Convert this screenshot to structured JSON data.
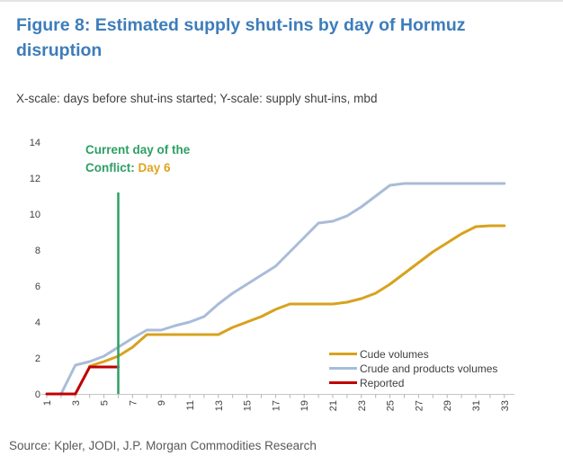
{
  "header": {
    "title": "Figure 8: Estimated supply shut-ins by day of Hormuz disruption",
    "subtitle": "X-scale: days before shut-ins started; Y-scale: supply shut-ins, mbd"
  },
  "annotation": {
    "line1": "Current day of the",
    "line2_prefix": "Conflict: ",
    "line2_highlight": "Day 6"
  },
  "source": "Source: Kpler, JODI, J.P. Morgan Commodities Research",
  "colors": {
    "title_blue": "#3d7dbb",
    "annotation_green": "#2d9f63",
    "annotation_gold": "#dfa41f",
    "axis_line": "#c6c6c6",
    "tick_mark": "#b3b3b3",
    "tick_text": "#404040",
    "source_gray": "#595959"
  },
  "chart_data": {
    "type": "line",
    "title": "Estimated supply shut-ins by day of Hormuz disruption",
    "xlabel": "days before shut-ins started",
    "ylabel": "supply shut-ins, mbd",
    "xlim": [
      1,
      33
    ],
    "ylim": [
      0,
      14
    ],
    "grid": false,
    "legend_position": "inside lower right",
    "x_tick_labels": [
      1,
      3,
      5,
      7,
      9,
      11,
      13,
      15,
      17,
      19,
      21,
      23,
      25,
      27,
      29,
      31,
      33
    ],
    "y_tick_labels": [
      0,
      2,
      4,
      6,
      8,
      10,
      12,
      14
    ],
    "vline": {
      "day": 6,
      "top": 11.2,
      "color": "#2d9f63",
      "label": "Current day of the Conflict: Day 6"
    },
    "series": [
      {
        "name": "Cude volumes",
        "color": "#d7a21e",
        "start_day": 4,
        "values": [
          1.55,
          1.8,
          2.1,
          2.6,
          3.3,
          3.3,
          3.3,
          3.3,
          3.3,
          3.3,
          3.7,
          4.0,
          4.3,
          4.7,
          5.0,
          5.0,
          5.0,
          5.0,
          5.1,
          5.3,
          5.6,
          6.1,
          6.7,
          7.3,
          7.9,
          8.4,
          8.9,
          9.3,
          9.35,
          9.35
        ]
      },
      {
        "name": "Crude and products volumes",
        "color": "#a9bcd8",
        "start_day": 1,
        "values": [
          0,
          0,
          1.6,
          1.8,
          2.1,
          2.6,
          3.1,
          3.55,
          3.55,
          3.8,
          4.0,
          4.3,
          5.0,
          5.6,
          6.1,
          6.6,
          7.1,
          7.9,
          8.7,
          9.5,
          9.6,
          9.9,
          10.4,
          11.0,
          11.6,
          11.7,
          11.7,
          11.7,
          11.7,
          11.7,
          11.7,
          11.7,
          11.7
        ]
      },
      {
        "name": "Reported",
        "color": "#c00000",
        "start_day": 1,
        "values": [
          0,
          0,
          0,
          1.5,
          1.5,
          1.5
        ]
      }
    ]
  }
}
